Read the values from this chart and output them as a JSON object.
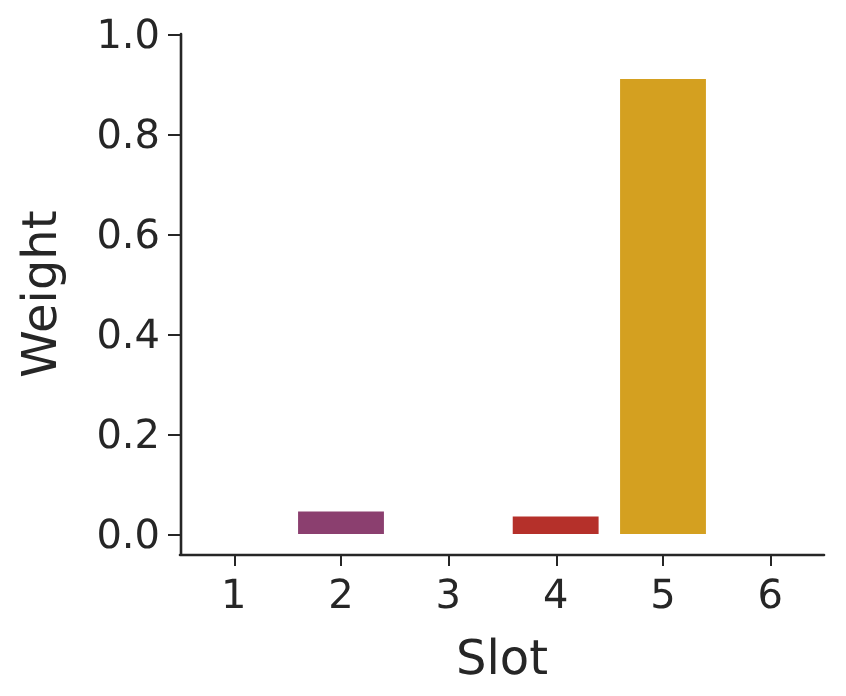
{
  "chart_data": {
    "type": "bar",
    "xlabel": "Slot",
    "ylabel": "Weight",
    "categories": [
      "1",
      "2",
      "3",
      "4",
      "5",
      "6"
    ],
    "values": [
      0,
      0.045,
      0,
      0.035,
      0.91,
      0
    ],
    "colors": [
      "#8b3f6f",
      "#8b3f6f",
      "#b5302a",
      "#b5302a",
      "#d4a020",
      "#d4a020"
    ],
    "ylim": [
      -0.04,
      1.0
    ],
    "yticks": [
      {
        "value": 0,
        "label": "0.0"
      },
      {
        "value": 0.2,
        "label": "0.2"
      },
      {
        "value": 0.4,
        "label": "0.4"
      },
      {
        "value": 0.6,
        "label": "0.6"
      },
      {
        "value": 0.8,
        "label": "0.8"
      },
      {
        "value": 1.0,
        "label": "1.0"
      }
    ],
    "grid": false
  }
}
